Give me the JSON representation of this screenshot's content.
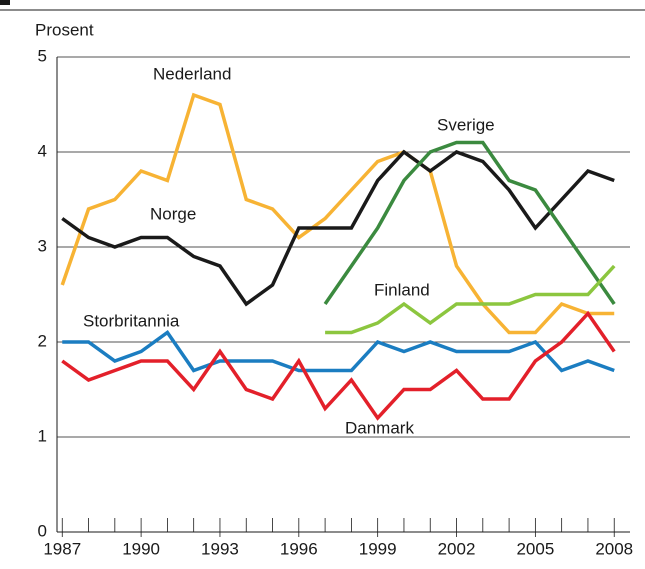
{
  "chart_data": {
    "type": "line",
    "y_label": "Prosent",
    "x": [
      1987,
      1988,
      1989,
      1990,
      1991,
      1992,
      1993,
      1994,
      1995,
      1996,
      1997,
      1998,
      1999,
      2000,
      2001,
      2002,
      2003,
      2004,
      2005,
      2006,
      2007,
      2008
    ],
    "xlim": [
      1986.8,
      2008.6
    ],
    "xticks": [
      1987,
      1990,
      1993,
      1996,
      1999,
      2002,
      2005,
      2008
    ],
    "ylim": [
      0,
      5
    ],
    "yticks": [
      0,
      1,
      2,
      3,
      4,
      5
    ],
    "grid": true,
    "series": [
      {
        "name": "Nederland",
        "color": "#f7b334",
        "values": [
          2.6,
          3.4,
          3.5,
          3.8,
          3.7,
          4.6,
          4.5,
          3.5,
          3.4,
          3.1,
          3.3,
          3.6,
          3.9,
          4.0,
          3.8,
          2.8,
          2.4,
          2.1,
          2.1,
          2.4,
          2.3,
          2.3
        ]
      },
      {
        "name": "Norge",
        "color": "#1a1a1a",
        "values": [
          3.3,
          3.1,
          3.0,
          3.1,
          3.1,
          2.9,
          2.8,
          2.4,
          2.6,
          3.2,
          3.2,
          3.2,
          3.7,
          4.0,
          3.8,
          4.0,
          3.9,
          3.6,
          3.2,
          3.5,
          3.8,
          3.7
        ]
      },
      {
        "name": "Sverige",
        "color": "#3b8a3f",
        "values": [
          null,
          null,
          null,
          null,
          null,
          null,
          null,
          null,
          null,
          null,
          2.4,
          2.8,
          3.2,
          3.7,
          4.0,
          4.1,
          4.1,
          3.7,
          3.6,
          3.2,
          2.8,
          2.4
        ]
      },
      {
        "name": "Finland",
        "color": "#8cc63f",
        "values": [
          null,
          null,
          null,
          null,
          null,
          null,
          null,
          null,
          null,
          null,
          2.1,
          2.1,
          2.2,
          2.4,
          2.2,
          2.4,
          2.4,
          2.4,
          2.5,
          2.5,
          2.5,
          2.8
        ]
      },
      {
        "name": "Storbritannia",
        "color": "#1b7dc1",
        "values": [
          2.0,
          2.0,
          1.8,
          1.9,
          2.1,
          1.7,
          1.8,
          1.8,
          1.8,
          1.7,
          1.7,
          1.7,
          2.0,
          1.9,
          2.0,
          1.9,
          1.9,
          1.9,
          2.0,
          1.7,
          1.8,
          1.7
        ]
      },
      {
        "name": "Danmark",
        "color": "#e3202a",
        "values": [
          1.8,
          1.6,
          1.7,
          1.8,
          1.8,
          1.5,
          1.9,
          1.5,
          1.4,
          1.8,
          1.3,
          1.6,
          1.2,
          1.5,
          1.5,
          1.7,
          1.4,
          1.4,
          1.8,
          2.0,
          2.3,
          1.9
        ]
      }
    ]
  }
}
